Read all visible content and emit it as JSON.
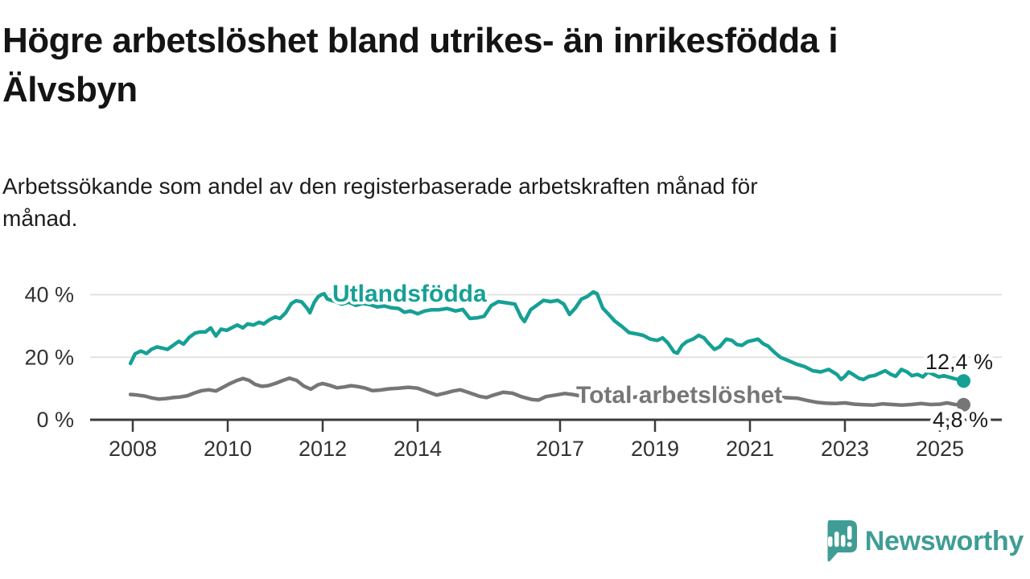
{
  "header": {
    "title_lines": [
      "Högre arbetslöshet bland utrikes- än inrikesfödda i",
      "Älvsbyn"
    ],
    "subtitle_lines": [
      "Arbetssökande som andel av den registerbaserade arbetskraften månad för",
      "månad."
    ]
  },
  "chart_data": {
    "type": "line",
    "title": "Högre arbetslöshet bland utrikes- än inrikesfödda i Älvsbyn",
    "subtitle": "Arbetssökande som andel av den registerbaserade arbetskraften månad för månad.",
    "grid": "horizontal-only",
    "legend_position": "inline-labels-on-lines",
    "x_axis": {
      "range": [
        2007.9,
        2025.6
      ],
      "ticks": [
        {
          "value": 2008,
          "label": "2008"
        },
        {
          "value": 2010,
          "label": "2010"
        },
        {
          "value": 2012,
          "label": "2012"
        },
        {
          "value": 2014,
          "label": "2014"
        },
        {
          "value": 2017,
          "label": "2017"
        },
        {
          "value": 2019,
          "label": "2019"
        },
        {
          "value": 2021,
          "label": "2021"
        },
        {
          "value": 2023,
          "label": "2023"
        },
        {
          "value": 2025,
          "label": "2025"
        }
      ]
    },
    "y_axis": {
      "unit": "%",
      "range": [
        0,
        43
      ],
      "ticks": [
        {
          "value": 0,
          "label": "0 %"
        },
        {
          "value": 20,
          "label": "20 %"
        },
        {
          "value": 40,
          "label": "40 %"
        }
      ],
      "gridline_color": "#dbdbdb",
      "axis_color": "#3b3b3b"
    },
    "series": [
      {
        "name": "Utlandsfödda",
        "color": "#16a095",
        "end_value": 12.4,
        "end_value_label": "12,4 %",
        "points": [
          [
            2007.95,
            18.0
          ],
          [
            2008.05,
            21.1
          ],
          [
            2008.17,
            22.0
          ],
          [
            2008.29,
            21.2
          ],
          [
            2008.39,
            22.5
          ],
          [
            2008.51,
            23.3
          ],
          [
            2008.63,
            22.9
          ],
          [
            2008.73,
            22.5
          ],
          [
            2008.85,
            23.8
          ],
          [
            2008.97,
            25.1
          ],
          [
            2009.07,
            24.2
          ],
          [
            2009.19,
            26.4
          ],
          [
            2009.31,
            27.7
          ],
          [
            2009.41,
            28.1
          ],
          [
            2009.53,
            28.1
          ],
          [
            2009.64,
            29.4
          ],
          [
            2009.75,
            26.8
          ],
          [
            2009.86,
            29.0
          ],
          [
            2009.98,
            28.6
          ],
          [
            2010.08,
            29.4
          ],
          [
            2010.2,
            30.3
          ],
          [
            2010.32,
            29.4
          ],
          [
            2010.42,
            30.7
          ],
          [
            2010.54,
            30.3
          ],
          [
            2010.66,
            31.2
          ],
          [
            2010.76,
            30.7
          ],
          [
            2010.88,
            32.0
          ],
          [
            2011.0,
            32.9
          ],
          [
            2011.1,
            32.4
          ],
          [
            2011.22,
            34.2
          ],
          [
            2011.34,
            37.2
          ],
          [
            2011.44,
            38.1
          ],
          [
            2011.56,
            37.7
          ],
          [
            2011.68,
            35.5
          ],
          [
            2011.73,
            34.2
          ],
          [
            2011.82,
            37.5
          ],
          [
            2011.9,
            39.3
          ],
          [
            2011.97,
            40.0
          ],
          [
            2012.03,
            40.3
          ],
          [
            2012.1,
            38.6
          ],
          [
            2012.25,
            37.9
          ],
          [
            2012.4,
            37.0
          ],
          [
            2012.55,
            37.6
          ],
          [
            2012.7,
            36.6
          ],
          [
            2012.85,
            37.2
          ],
          [
            2013.0,
            36.8
          ],
          [
            2013.15,
            36.1
          ],
          [
            2013.3,
            36.4
          ],
          [
            2013.45,
            35.8
          ],
          [
            2013.6,
            35.6
          ],
          [
            2013.72,
            34.4
          ],
          [
            2013.85,
            34.8
          ],
          [
            2014.0,
            33.9
          ],
          [
            2014.15,
            34.8
          ],
          [
            2014.3,
            35.2
          ],
          [
            2014.45,
            35.2
          ],
          [
            2014.62,
            35.6
          ],
          [
            2014.8,
            34.8
          ],
          [
            2014.95,
            35.3
          ],
          [
            2015.1,
            32.4
          ],
          [
            2015.25,
            32.6
          ],
          [
            2015.4,
            33.1
          ],
          [
            2015.55,
            36.5
          ],
          [
            2015.7,
            37.8
          ],
          [
            2015.88,
            37.4
          ],
          [
            2016.05,
            37.0
          ],
          [
            2016.18,
            32.8
          ],
          [
            2016.25,
            31.4
          ],
          [
            2016.38,
            35.2
          ],
          [
            2016.5,
            36.5
          ],
          [
            2016.65,
            38.2
          ],
          [
            2016.8,
            37.8
          ],
          [
            2016.95,
            38.2
          ],
          [
            2017.08,
            37.0
          ],
          [
            2017.2,
            33.7
          ],
          [
            2017.32,
            35.7
          ],
          [
            2017.45,
            38.6
          ],
          [
            2017.57,
            39.4
          ],
          [
            2017.7,
            40.9
          ],
          [
            2017.78,
            40.3
          ],
          [
            2017.9,
            35.7
          ],
          [
            2018.0,
            34.1
          ],
          [
            2018.15,
            31.6
          ],
          [
            2018.3,
            29.9
          ],
          [
            2018.45,
            27.9
          ],
          [
            2018.6,
            27.5
          ],
          [
            2018.75,
            27.0
          ],
          [
            2018.9,
            25.8
          ],
          [
            2019.05,
            25.4
          ],
          [
            2019.16,
            26.2
          ],
          [
            2019.27,
            24.6
          ],
          [
            2019.4,
            21.7
          ],
          [
            2019.47,
            21.3
          ],
          [
            2019.57,
            23.8
          ],
          [
            2019.67,
            25.0
          ],
          [
            2019.8,
            25.8
          ],
          [
            2019.92,
            27.0
          ],
          [
            2020.03,
            26.2
          ],
          [
            2020.12,
            24.6
          ],
          [
            2020.25,
            22.5
          ],
          [
            2020.36,
            23.3
          ],
          [
            2020.5,
            25.8
          ],
          [
            2020.62,
            25.4
          ],
          [
            2020.72,
            24.1
          ],
          [
            2020.83,
            23.8
          ],
          [
            2020.95,
            25.0
          ],
          [
            2021.06,
            25.4
          ],
          [
            2021.17,
            25.8
          ],
          [
            2021.28,
            24.3
          ],
          [
            2021.38,
            23.6
          ],
          [
            2021.5,
            21.8
          ],
          [
            2021.64,
            20.0
          ],
          [
            2021.81,
            18.9
          ],
          [
            2021.98,
            17.8
          ],
          [
            2022.15,
            17.0
          ],
          [
            2022.32,
            15.7
          ],
          [
            2022.49,
            15.3
          ],
          [
            2022.66,
            16.1
          ],
          [
            2022.83,
            14.5
          ],
          [
            2022.92,
            12.9
          ],
          [
            2023.0,
            13.9
          ],
          [
            2023.08,
            15.3
          ],
          [
            2023.17,
            14.5
          ],
          [
            2023.29,
            13.3
          ],
          [
            2023.39,
            12.9
          ],
          [
            2023.51,
            13.9
          ],
          [
            2023.63,
            14.2
          ],
          [
            2023.73,
            14.9
          ],
          [
            2023.85,
            15.7
          ],
          [
            2023.97,
            14.5
          ],
          [
            2024.07,
            13.9
          ],
          [
            2024.19,
            16.1
          ],
          [
            2024.31,
            15.3
          ],
          [
            2024.41,
            14.1
          ],
          [
            2024.53,
            14.5
          ],
          [
            2024.64,
            13.7
          ],
          [
            2024.75,
            15.3
          ],
          [
            2024.86,
            14.5
          ],
          [
            2024.98,
            13.7
          ],
          [
            2025.08,
            14.1
          ],
          [
            2025.2,
            13.6
          ],
          [
            2025.32,
            13.1
          ],
          [
            2025.42,
            12.7
          ],
          [
            2025.5,
            12.4
          ]
        ]
      },
      {
        "name": "Total arbetslöshet",
        "color": "#767676",
        "end_value": 4.8,
        "end_value_label": "4,8 %",
        "points": [
          [
            2007.95,
            8.1
          ],
          [
            2008.1,
            7.9
          ],
          [
            2008.25,
            7.6
          ],
          [
            2008.4,
            7.0
          ],
          [
            2008.55,
            6.6
          ],
          [
            2008.7,
            6.8
          ],
          [
            2008.85,
            7.1
          ],
          [
            2009.0,
            7.3
          ],
          [
            2009.15,
            7.7
          ],
          [
            2009.3,
            8.6
          ],
          [
            2009.45,
            9.3
          ],
          [
            2009.6,
            9.6
          ],
          [
            2009.75,
            9.2
          ],
          [
            2009.9,
            10.4
          ],
          [
            2010.05,
            11.6
          ],
          [
            2010.2,
            12.6
          ],
          [
            2010.32,
            13.2
          ],
          [
            2010.45,
            12.6
          ],
          [
            2010.58,
            11.3
          ],
          [
            2010.72,
            10.7
          ],
          [
            2010.85,
            10.9
          ],
          [
            2011.0,
            11.6
          ],
          [
            2011.15,
            12.5
          ],
          [
            2011.3,
            13.3
          ],
          [
            2011.45,
            12.6
          ],
          [
            2011.6,
            10.8
          ],
          [
            2011.75,
            9.8
          ],
          [
            2011.9,
            11.2
          ],
          [
            2012.0,
            11.6
          ],
          [
            2012.15,
            11.0
          ],
          [
            2012.3,
            10.2
          ],
          [
            2012.45,
            10.5
          ],
          [
            2012.6,
            10.9
          ],
          [
            2012.75,
            10.6
          ],
          [
            2012.9,
            10.1
          ],
          [
            2013.05,
            9.3
          ],
          [
            2013.2,
            9.5
          ],
          [
            2013.4,
            9.9
          ],
          [
            2013.6,
            10.1
          ],
          [
            2013.8,
            10.4
          ],
          [
            2014.0,
            10.1
          ],
          [
            2014.2,
            9.0
          ],
          [
            2014.4,
            7.9
          ],
          [
            2014.6,
            8.6
          ],
          [
            2014.75,
            9.2
          ],
          [
            2014.9,
            9.6
          ],
          [
            2015.1,
            8.6
          ],
          [
            2015.3,
            7.5
          ],
          [
            2015.45,
            7.1
          ],
          [
            2015.6,
            7.9
          ],
          [
            2015.8,
            8.8
          ],
          [
            2016.0,
            8.5
          ],
          [
            2016.2,
            7.3
          ],
          [
            2016.4,
            6.5
          ],
          [
            2016.55,
            6.3
          ],
          [
            2016.7,
            7.4
          ],
          [
            2016.9,
            7.9
          ],
          [
            2017.1,
            8.4
          ],
          [
            2017.3,
            8.0
          ],
          [
            2017.5,
            7.4
          ],
          [
            2017.7,
            7.1
          ],
          [
            2017.9,
            7.6
          ],
          [
            2018.1,
            7.2
          ],
          [
            2018.35,
            6.8
          ],
          [
            2018.6,
            7.3
          ],
          [
            2018.85,
            7.0
          ],
          [
            2019.1,
            7.5
          ],
          [
            2019.35,
            7.2
          ],
          [
            2019.6,
            7.8
          ],
          [
            2019.85,
            7.5
          ],
          [
            2020.1,
            8.3
          ],
          [
            2020.35,
            8.8
          ],
          [
            2020.6,
            8.5
          ],
          [
            2020.85,
            8.1
          ],
          [
            2021.1,
            7.8
          ],
          [
            2021.35,
            7.4
          ],
          [
            2021.6,
            7.2
          ],
          [
            2021.85,
            7.0
          ],
          [
            2022.0,
            6.9
          ],
          [
            2022.2,
            6.2
          ],
          [
            2022.4,
            5.6
          ],
          [
            2022.6,
            5.3
          ],
          [
            2022.8,
            5.2
          ],
          [
            2023.0,
            5.4
          ],
          [
            2023.2,
            5.0
          ],
          [
            2023.4,
            4.8
          ],
          [
            2023.6,
            4.7
          ],
          [
            2023.8,
            5.1
          ],
          [
            2024.0,
            4.9
          ],
          [
            2024.2,
            4.7
          ],
          [
            2024.4,
            4.9
          ],
          [
            2024.6,
            5.2
          ],
          [
            2024.8,
            4.9
          ],
          [
            2025.0,
            5.0
          ],
          [
            2025.15,
            5.4
          ],
          [
            2025.32,
            4.9
          ],
          [
            2025.5,
            4.8
          ]
        ]
      }
    ]
  },
  "branding": {
    "logo_text": "Newsworthy",
    "logo_color": "#3f9d95",
    "logo_icon": "newsworthy-speech-bubble-chart-icon"
  }
}
